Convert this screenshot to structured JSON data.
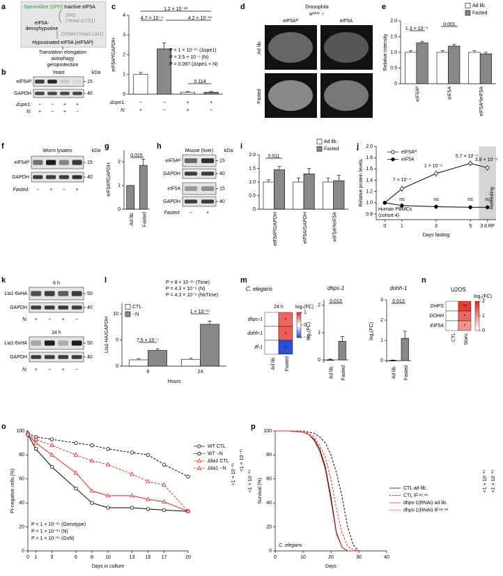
{
  "panels": {
    "labels": [
      "a",
      "b",
      "c",
      "d",
      "e",
      "f",
      "g",
      "h",
      "i",
      "j",
      "k",
      "l",
      "m",
      "n",
      "o",
      "p"
    ],
    "a": {
      "spermidine": "Spermidine (SPD)",
      "inactive": "Inactive eIF5A",
      "dhs": "DHS",
      "dhs_yeast": "(Yeast DYS1)",
      "intermediate": [
        "eIF5A-",
        "deoxyhypusine"
      ],
      "dohh": "DOHH",
      "dohh_yeast": "(Yeast LIA1)",
      "product": "Hypusinated eIF5A (eIF5Aᴴ)",
      "outcomes": [
        "Translation elongation",
        "autophagy",
        "geroprotection"
      ]
    },
    "b": {
      "title": "Yeast",
      "unit": "kDa",
      "rows": [
        "eIF5Aᴴ",
        "GAPDH"
      ],
      "markers": [
        "15",
        "40"
      ],
      "conditions": [
        {
          "label": "Δspe1:",
          "values": [
            "−",
            "−",
            "+",
            "+"
          ]
        },
        {
          "label": "N:",
          "values": [
            "+",
            "−",
            "+",
            "−"
          ]
        }
      ]
    },
    "d": {
      "title": "Drosophila",
      "strain": "w¹¹¹⁸ ♀",
      "columns": [
        "eIF5Aᴴ",
        "eIF5A"
      ],
      "rows": [
        "Ad lib.",
        "Fasted"
      ]
    },
    "f": {
      "title": "Worm lysates",
      "unit": "kDa",
      "rows": [
        "eIF5Aᴴ",
        "GAPDH"
      ],
      "markers": [
        "15",
        "40"
      ],
      "conditions": [
        {
          "label": "Fasted:",
          "values": [
            "−",
            "+",
            "−",
            "+"
          ]
        }
      ]
    },
    "h": {
      "title": "Mouse (liver)",
      "unit": "kDa",
      "rows": [
        "eIF5Aᴴ",
        "GAPDH",
        "eIF5A",
        "GAPDH"
      ],
      "markers": [
        "15",
        "40",
        "15",
        "40"
      ],
      "conditions": [
        {
          "label": "Fasted:",
          "values": [
            "−",
            "+"
          ]
        }
      ]
    },
    "k": {
      "blocks": [
        {
          "title": "6 h",
          "rows": [
            "Lia1-6xHA",
            "GAPDH"
          ],
          "markers": [
            "50",
            "40"
          ],
          "conditions": [
            {
              "label": "N:",
              "values": [
                "+",
                "−",
                "+",
                "−"
              ]
            }
          ]
        },
        {
          "title": "24 h",
          "rows": [
            "Lia1-6xHA",
            "GAPDH"
          ],
          "markers": [
            "50",
            "40"
          ],
          "conditions": [
            {
              "label": "N:",
              "values": [
                "+",
                "−",
                "+",
                "−"
              ]
            }
          ]
        }
      ]
    }
  },
  "chart_data": [
    {
      "type": "bar",
      "ylabel": "eIF5Aᴴ/GAPDH",
      "categories": [
        null,
        null,
        null,
        null
      ],
      "values": [
        1.0,
        2.3,
        0.1,
        0.1
      ],
      "errors": [
        0.1,
        0.3,
        0.03,
        0.03
      ],
      "colors": [
        "#ffffff",
        "#888888",
        "#ffffff",
        "#888888"
      ],
      "rows": [
        {
          "label": "Δspe1:",
          "values": [
            "−",
            "−",
            "+",
            "+"
          ]
        },
        {
          "label": "N:",
          "values": [
            "+",
            "−",
            "+",
            "−"
          ]
        }
      ],
      "ylim": [
        0,
        4
      ],
      "yticks": [
        0,
        1,
        2,
        3,
        4
      ],
      "annotations": [
        "1.2 × 10⁻¹²",
        "4.7 × 10⁻⁴",
        "4.2 × 10⁻¹⁴",
        "P < 1 × 10⁻¹⁵ (Δspe1)",
        "P = 3.5 × 10⁻⁵ (N)",
        "P = 0.097 (Δspe1 × N)",
        "0.114"
      ]
    },
    {
      "type": "bar",
      "ylabel": "Relative intensity",
      "categories": [
        "eIF5Aᴴ",
        "eIF5A",
        "eIF5Aᴴ/eIF5A"
      ],
      "series": [
        {
          "name": "Ad lib.",
          "color": "#ffffff",
          "values": [
            1.0,
            1.0,
            1.0
          ],
          "errors": [
            0.05,
            0.05,
            0.05
          ]
        },
        {
          "name": "Fasted",
          "color": "#888888",
          "values": [
            1.3,
            1.2,
            0.95
          ],
          "errors": [
            0.05,
            0.05,
            0.05
          ]
        }
      ],
      "ylim": [
        0,
        2
      ],
      "yticks": [
        0,
        0.5,
        {
          "value": 1,
          "label": "1.0"
        },
        1.5,
        {
          "value": 2,
          "label": "2.0"
        }
      ],
      "annotations": [
        "1.3 × 10⁻⁴",
        "0.001"
      ]
    },
    {
      "type": "bar",
      "ylabel": "eIF5Aᴴ/GAPDH",
      "categories": [
        "Ad lib.",
        "Fasted"
      ],
      "values": [
        1.0,
        1.85
      ],
      "errors": [
        0,
        0.25
      ],
      "color": "#888888",
      "ylim": [
        0,
        2.5
      ],
      "yticks": [
        0,
        1,
        2
      ],
      "annotations": [
        "0.015"
      ]
    },
    {
      "type": "bar",
      "categories": [
        "eIF5Aᴴ/GAPDH",
        "eIF5A/GAPDH",
        "eIF5Aᴴ/eIF5A"
      ],
      "series": [
        {
          "name": "Ad lib.",
          "color": "#ffffff",
          "values": [
            1.0,
            1.0,
            1.0
          ],
          "errors": [
            0.08,
            0.15,
            0.15
          ]
        },
        {
          "name": "Fasted",
          "color": "#888888",
          "values": [
            1.45,
            1.3,
            1.05
          ],
          "errors": [
            0.12,
            0.2,
            0.2
          ]
        }
      ],
      "ylim": [
        0,
        2
      ],
      "yticks": [
        0,
        0.5,
        {
          "value": 1,
          "label": "1.0"
        },
        1.5,
        {
          "value": 2,
          "label": "2.0"
        }
      ],
      "annotations": [
        "0.011"
      ]
    },
    {
      "type": "line",
      "xlabel": "Days fasting",
      "ylabel": "Relative protein levels",
      "x": [
        0,
        1,
        3,
        5,
        6
      ],
      "xlim": [
        -0.5,
        6.5
      ],
      "xticks": [
        0,
        1,
        3,
        5,
        {
          "value": 6,
          "label": "3 d RF"
        }
      ],
      "series": [
        {
          "name": "eIF5Aᴴ",
          "color": "#000000",
          "marker": "circle",
          "filled": false,
          "values": [
            1.0,
            1.25,
            1.52,
            1.7,
            1.62
          ],
          "errors": [
            0.03,
            0.06,
            0.06,
            0.05,
            0.05
          ]
        },
        {
          "name": "eIF5A",
          "color": "#000000",
          "marker": "circle",
          "filled": true,
          "values": [
            1.0,
            0.95,
            0.93,
            0.92,
            0.92
          ],
          "errors": [
            0.03,
            0.04,
            0.04,
            0.04,
            0.04
          ]
        }
      ],
      "ylim": [
        0.7,
        2.0
      ],
      "yticks": [
        {
          "value": 0.8,
          "label": "0.8"
        },
        {
          "value": 1,
          "label": "1.0"
        },
        {
          "value": 1.2,
          "label": "1.2"
        },
        {
          "value": 1.4,
          "label": "1.4"
        },
        {
          "value": 1.6,
          "label": "1.6"
        },
        {
          "value": 1.8,
          "label": "1.8"
        },
        {
          "value": 2,
          "label": "2.0"
        }
      ],
      "annotations": [
        "7 × 10⁻⁴",
        "1 × 10⁻⁶",
        "5.7 × 10⁻⁹",
        "3.8 × 10⁻⁹",
        "ns",
        "ns",
        "ns",
        "ns",
        "Human PBMCs",
        "(cohort 4)",
        "Refeeding"
      ]
    },
    {
      "type": "bar",
      "xlabel": "Hours",
      "ylabel": "Lia1-HA/GAPDH",
      "categories": [
        "6",
        "24"
      ],
      "series": [
        {
          "name": "CTL",
          "color": "#ffffff",
          "values": [
            1.2,
            1.3
          ],
          "errors": [
            0.2,
            0.2
          ]
        },
        {
          "name": "−N",
          "color": "#888888",
          "values": [
            3.0,
            8.0
          ],
          "errors": [
            0.3,
            0.6
          ]
        }
      ],
      "ylim": [
        0,
        12
      ],
      "yticks": [
        0,
        5,
        10
      ],
      "annotations": [
        "P = 8 × 10⁻¹⁵ (Time)",
        "P = 4.3 × 10⁻⁹ (N)",
        "P = 4.3 × 10⁻⁹ (NxTime)",
        "7.5 × 10⁻⁵",
        "1 × 10⁻¹⁵"
      ]
    },
    {
      "type": "heatmap",
      "title": "C. elegans",
      "subtitle": "24 h",
      "rows": [
        "dhps-1",
        "dohh-1",
        "iff-1"
      ],
      "columns": [
        "Ad lib.",
        "Fasted"
      ],
      "values": [
        [
          0,
          0.7
        ],
        [
          0,
          0.75
        ],
        [
          0,
          -1
        ]
      ],
      "zlim": [
        -1,
        1
      ],
      "zticks": [
        1,
        0,
        {
          "value": -1,
          "label": "−1"
        }
      ],
      "colorbar_label": "log₂(FC)",
      "colormap": [
        "#2b4fd6",
        "#ffffff",
        "#e8261e"
      ],
      "annotations": [
        "*",
        "*",
        "*"
      ]
    },
    {
      "type": "bar",
      "title": "dhps-1",
      "ylabel": "log₂(FC)",
      "categories": [
        "Ad lib.",
        "Fasted"
      ],
      "values": [
        0.0,
        0.68
      ],
      "errors": [
        0.03,
        0.18
      ],
      "color": "#888888",
      "ylim": [
        -0.1,
        2.2
      ],
      "yticks": [
        0,
        1,
        2
      ],
      "annotations": [
        "0.013"
      ]
    },
    {
      "type": "bar",
      "title": "dohh-1",
      "ylabel": "log₂(FC)",
      "categories": [
        "Ad lib.",
        "Fasted"
      ],
      "values": [
        0.0,
        1.1
      ],
      "errors": [
        0.03,
        0.35
      ],
      "color": "#888888",
      "ylim": [
        -0.1,
        3
      ],
      "yticks": [
        0,
        1,
        2,
        3
      ],
      "annotations": [
        "0.013"
      ]
    },
    {
      "type": "heatmap",
      "title": "U2OS",
      "rows": [
        "DHPS",
        "DOHH",
        "EIF5A"
      ],
      "columns": [
        "CTL",
        "Starv."
      ],
      "values": [
        [
          0,
          1.8
        ],
        [
          0,
          1.4
        ],
        [
          0,
          1.0
        ]
      ],
      "zlim": [
        0,
        2
      ],
      "zticks": [
        2,
        1,
        0
      ],
      "colorbar_label": "log₂(FC)",
      "colormap": [
        "#ffffff",
        "#e8261e"
      ],
      "annotations": [
        "**",
        "*",
        "*"
      ]
    },
    {
      "type": "line",
      "xlabel": "Days in culture",
      "ylabel": "PI-negative cells (%)",
      "x": [
        0,
        1,
        3,
        6,
        8,
        10,
        13,
        15,
        17,
        20
      ],
      "xlim": [
        0,
        20
      ],
      "xticks": [
        0,
        1,
        3,
        6,
        8,
        10,
        13,
        15,
        17,
        20
      ],
      "series": [
        {
          "name": "WT CTL",
          "color": "#000000",
          "marker": "circle",
          "filled": false,
          "linestyle": "solid",
          "values": [
            97,
            85,
            70,
            52,
            40,
            36,
            36,
            35,
            34,
            33
          ]
        },
        {
          "name": "WT −N",
          "color": "#000000",
          "marker": "circle",
          "filled": false,
          "linestyle": "dashed",
          "values": [
            98,
            95,
            93,
            90,
            88,
            85,
            82,
            80,
            72,
            62
          ]
        },
        {
          "name": "Δlia1 CTL",
          "color": "#e8261e",
          "marker": "triangle",
          "filled": false,
          "linestyle": "solid",
          "values": [
            97,
            90,
            80,
            65,
            50,
            46,
            46,
            43,
            41,
            33
          ]
        },
        {
          "name": "Δlia1 −N",
          "color": "#e8261e",
          "marker": "triangle",
          "filled": false,
          "linestyle": "dashed",
          "values": [
            97,
            93,
            88,
            80,
            75,
            72,
            64,
            58,
            55,
            33
          ]
        }
      ],
      "ylim": [
        0,
        100
      ],
      "yticks": [
        0,
        20,
        40,
        60,
        80,
        100
      ],
      "annotations": [
        "P < 1 × 10⁻¹⁵ (Genotype)",
        "P < 1 × 10⁻¹⁵ (N)",
        "P < 1 × 10⁻¹⁵ (GxN)",
        "<1 × 10⁻¹⁵",
        "<1 × 10⁻¹⁵",
        "<1 × 10⁻¹⁵"
      ]
    },
    {
      "type": "line",
      "xlabel": "Days",
      "ylabel": "Survival (%)",
      "x": [
        0,
        5,
        10,
        12,
        14,
        16,
        18,
        20,
        22,
        24,
        26,
        28,
        30
      ],
      "xlim": [
        0,
        40
      ],
      "xticks": [
        0,
        10,
        20,
        30,
        40
      ],
      "series": [
        {
          "name": "CTL ad lib.",
          "color": "#000000",
          "marker": "none",
          "linestyle": "solid",
          "values": [
            100,
            100,
            99,
            97,
            93,
            85,
            70,
            45,
            15,
            3,
            0,
            0,
            0
          ]
        },
        {
          "name": "CTL IF⁴⁸:⁴⁸",
          "color": "#000000",
          "marker": "none",
          "linestyle": "dashed",
          "values": [
            100,
            100,
            100,
            99,
            98,
            95,
            90,
            80,
            65,
            45,
            20,
            5,
            0
          ]
        },
        {
          "name": "dhps-1(RNAi) ad lib.",
          "color": "#e8261e",
          "marker": "none",
          "linestyle": "solid",
          "values": [
            100,
            100,
            99,
            97,
            92,
            83,
            68,
            42,
            14,
            3,
            0,
            0,
            0
          ]
        },
        {
          "name": "dhps-1(RNAi) IF⁴⁸:⁴⁸",
          "color": "#e8261e",
          "marker": "none",
          "linestyle": "dashed",
          "values": [
            100,
            100,
            100,
            98,
            95,
            88,
            78,
            60,
            35,
            15,
            4,
            1,
            0
          ]
        }
      ],
      "ylim": [
        0,
        100
      ],
      "yticks": [
        0,
        20,
        40,
        60,
        80,
        100
      ],
      "annotations": [
        "C. elegans",
        "<1 × 10⁻¹⁵",
        "<1 × 10⁻¹⁵"
      ]
    }
  ]
}
